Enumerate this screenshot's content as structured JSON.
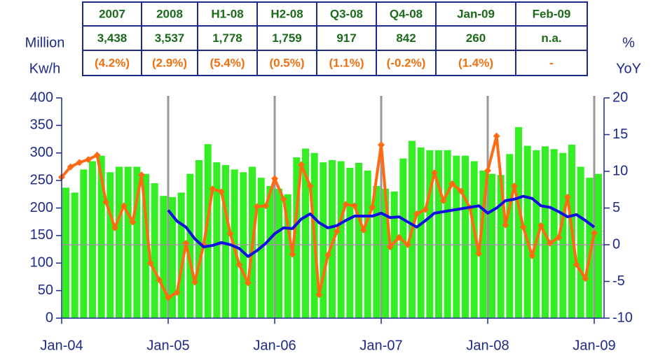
{
  "table": {
    "header": [
      "2007",
      "2008",
      "H1-08",
      "H2-08",
      "Q3-08",
      "Q4-08",
      "Jan-09",
      "Feb-09"
    ],
    "rows": [
      [
        "3,438",
        "3,537",
        "1,778",
        "1,759",
        "917",
        "842",
        "260",
        "n.a."
      ],
      [
        "(4.2%)",
        "(2.9%)",
        "(5.4%)",
        "(0.5%)",
        "(1.1%)",
        "(-0.2%)",
        "(1.4%)",
        "-"
      ]
    ]
  },
  "chart_data": {
    "type": "bar",
    "ylabel": [
      "Million",
      "Kw/h"
    ],
    "y2label": [
      "%",
      "YoY"
    ],
    "categories": [
      "Jan-04",
      null,
      null,
      null,
      null,
      null,
      null,
      null,
      null,
      null,
      null,
      null,
      "Jan-05",
      null,
      null,
      null,
      null,
      null,
      null,
      null,
      null,
      null,
      null,
      null,
      "Jan-06",
      null,
      null,
      null,
      null,
      null,
      null,
      null,
      null,
      null,
      null,
      null,
      "Jan-07",
      null,
      null,
      null,
      null,
      null,
      null,
      null,
      null,
      null,
      null,
      null,
      "Jan-08",
      null,
      null,
      null,
      null,
      null,
      null,
      null,
      null,
      null,
      null,
      null,
      "Jan-09"
    ],
    "series": [
      {
        "type": "bar",
        "color": "#33ee22",
        "axis": "y",
        "values": [
          237,
          228,
          270,
          285,
          295,
          265,
          275,
          275,
          275,
          262,
          245,
          222,
          220,
          228,
          262,
          287,
          316,
          283,
          278,
          270,
          265,
          275,
          255,
          240,
          235,
          225,
          292,
          308,
          300,
          283,
          287,
          285,
          273,
          282,
          268,
          240,
          235,
          230,
          290,
          322,
          310,
          305,
          305,
          305,
          295,
          295,
          285,
          268,
          262,
          260,
          298,
          347,
          313,
          305,
          312,
          307,
          300,
          315,
          275,
          255,
          262
        ]
      },
      {
        "type": "line",
        "color": "#ff6a13",
        "axis": "y2",
        "marker": "diamond",
        "values": [
          9.2,
          10.6,
          11.2,
          11.6,
          12.2,
          5.8,
          2.3,
          5.3,
          3.1,
          9.5,
          -2.5,
          -4.8,
          -7.2,
          -6.5,
          0.2,
          -5.1,
          0.0,
          7.6,
          7.2,
          1.5,
          -2.7,
          -5.2,
          5.2,
          5.3,
          9.0,
          6.2,
          -1.3,
          10.9,
          8.0,
          -6.8,
          -1.4,
          1.8,
          5.5,
          5.3,
          2.0,
          5.1,
          13.6,
          -0.3,
          1.0,
          0.0,
          4.2,
          4.8,
          9.8,
          6.0,
          8.3,
          7.3,
          5.0,
          -1.2,
          10.1,
          14.8,
          2.7,
          8.0,
          2.4,
          -1.5,
          2.6,
          0.2,
          1.0,
          6.5,
          -2.7,
          -4.6,
          1.6
        ]
      },
      {
        "type": "line",
        "color": "#1010e0",
        "axis": "y2",
        "values": [
          null,
          null,
          null,
          null,
          null,
          null,
          null,
          null,
          null,
          null,
          null,
          null,
          4.7,
          3.2,
          2.4,
          0.8,
          -0.3,
          -0.1,
          0.3,
          0.0,
          -0.5,
          -1.6,
          -0.8,
          0.2,
          1.5,
          2.3,
          2.2,
          3.5,
          4.2,
          3.0,
          2.3,
          2.6,
          3.3,
          3.9,
          3.9,
          3.9,
          4.3,
          3.7,
          3.8,
          3.1,
          2.4,
          3.3,
          4.3,
          4.5,
          4.7,
          4.9,
          5.1,
          5.3,
          4.3,
          5.0,
          6.0,
          6.2,
          6.6,
          6.3,
          5.3,
          5.1,
          4.5,
          3.8,
          4.1,
          3.3,
          2.4
        ]
      }
    ],
    "ylim": [
      0,
      400
    ],
    "yticks": [
      0,
      50,
      100,
      150,
      200,
      250,
      300,
      350,
      400
    ],
    "y2lim": [
      -10,
      20
    ],
    "y2ticks": [
      -10,
      -5,
      0,
      5,
      10,
      15,
      20
    ]
  }
}
